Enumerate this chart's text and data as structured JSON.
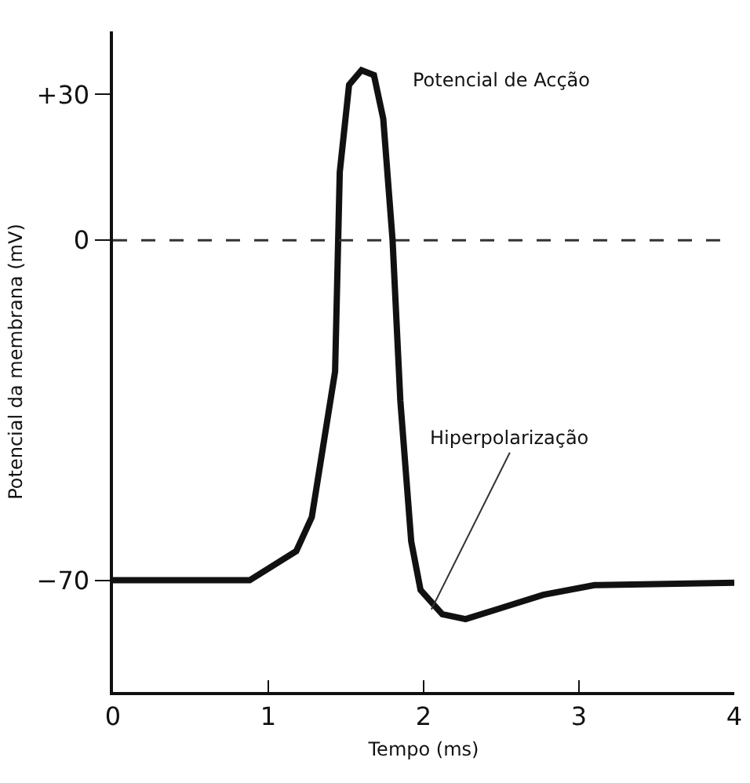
{
  "chart_data": {
    "type": "line",
    "xlabel": "Tempo (ms)",
    "ylabel": "Potencial da membrana (mV)",
    "x": [
      0,
      0.88,
      1.18,
      1.28,
      1.43,
      1.46,
      1.52,
      1.6,
      1.68,
      1.74,
      1.8,
      1.85,
      1.92,
      1.98,
      2.12,
      2.27,
      2.47,
      2.77,
      3.1,
      4
    ],
    "series": [
      {
        "color": "#111111",
        "values": [
          -70,
          -70,
          -64,
          -57,
          -27,
          14,
          32,
          35,
          34,
          25,
          0,
          -33,
          -62,
          -72,
          -77,
          -78,
          -76,
          -73,
          -71,
          -70.5
        ]
      }
    ],
    "xlim": [
      0,
      4
    ],
    "xticks": [
      0,
      1,
      2,
      3,
      4
    ],
    "ylim": [
      -93,
      43
    ],
    "yticks": [
      {
        "value": 30,
        "label": "+30"
      },
      0,
      {
        "value": -70,
        "label": "−70"
      }
    ],
    "ref_lines": [
      {
        "axis": "y",
        "value": 0,
        "line_style": "dashed",
        "color": "#333333"
      }
    ],
    "annotations": [
      {
        "text": "Potencial de Acção",
        "x": 1.75,
        "y": 33
      },
      {
        "text": "Hiperpolarização",
        "x": 2.05,
        "y": -76
      }
    ],
    "grid": false,
    "legend": false,
    "marker": "none",
    "line_style": "solid"
  }
}
